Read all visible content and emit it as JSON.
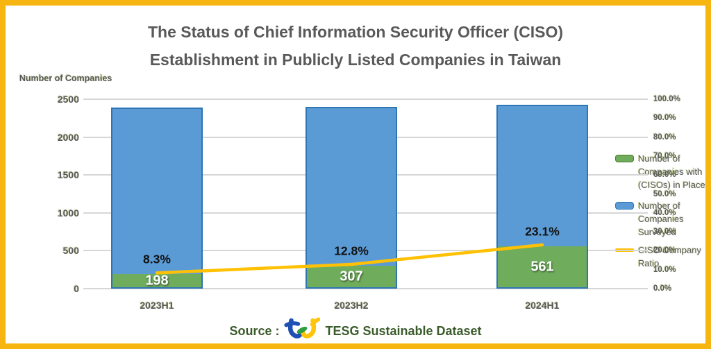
{
  "title": {
    "line1": "The Status of Chief Information Security Officer (CISO)",
    "line2": "Establishment in Publicly Listed Companies in Taiwan"
  },
  "chart_data": {
    "type": "bar",
    "subtype": "stacked bars with percentage line overlay",
    "categories": [
      "2023H1",
      "2023H2",
      "2024H1"
    ],
    "series": [
      {
        "name": "Number of Companies with (CISOs) in Place",
        "axis": "left",
        "color": "#6FAC5C",
        "values": [
          198,
          307,
          561
        ]
      },
      {
        "name": "Number of Companies Surveyed",
        "axis": "left",
        "color": "#5B9BD5",
        "values": [
          2386,
          2398,
          2429
        ],
        "note": "estimated from bar heights; bars reach just under the 2500 gridline"
      },
      {
        "name": "CISO Company Ratio",
        "axis": "right",
        "color": "#FFC104",
        "values": [
          8.3,
          12.8,
          23.1
        ]
      }
    ],
    "bar_value_labels": [
      "198",
      "307",
      "561"
    ],
    "ratio_labels": [
      "8.3%",
      "12.8%",
      "23.1%"
    ],
    "left_axis": {
      "label": "Number of Companies",
      "min": 0,
      "max": 2500,
      "tick_labels": [
        "2500",
        "2000",
        "1500",
        "1000",
        "500",
        "0"
      ]
    },
    "right_axis": {
      "min": 0,
      "max": 100,
      "tick_labels": [
        "100.0%",
        "90.0%",
        "80.0%",
        "70.0%",
        "60.0%",
        "50.0%",
        "40.0%",
        "30.0%",
        "20.0%",
        "10.0%",
        "0.0%"
      ]
    },
    "grid": "horizontal gridlines at every 500 companies (20%)",
    "legend_position": "right"
  },
  "legend": {
    "items": [
      {
        "label": "Number of Companies with (CISOs) in Place",
        "swatch": "green-box"
      },
      {
        "label": "Number of Companies Surveyed",
        "swatch": "blue-box"
      },
      {
        "label": "CISO Company Ratio",
        "swatch": "yellow-line"
      }
    ]
  },
  "source": {
    "prefix": "Source :",
    "logo": "tej-logo",
    "text": "TESG Sustainable Dataset"
  },
  "colors": {
    "frame_border": "#F7B511",
    "bar_blue": "#5B9BD5",
    "bar_blue_border": "#2E75B6",
    "bar_green": "#6FAC5C",
    "ratio_line": "#FFC104",
    "gridline": "#D6D6D6",
    "text_gray": "#595959",
    "source_green": "#3A5B2A"
  }
}
